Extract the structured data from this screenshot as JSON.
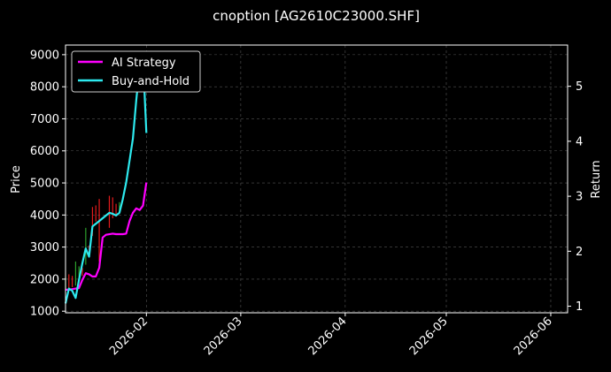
{
  "chart_data": {
    "type": "line",
    "title": "cnoption [AG2610C23000.SHF]",
    "ylabel": "Price",
    "y2label": "Return",
    "xlabel": "",
    "grid": true,
    "legend_placement": "top-left",
    "x_range": [
      "2026-01-08",
      "2026-06-06"
    ],
    "ylim": [
      950,
      9300
    ],
    "y2lim": [
      0.88,
      5.75
    ],
    "y_ticks": [
      1000,
      2000,
      3000,
      4000,
      5000,
      6000,
      7000,
      8000,
      9000
    ],
    "y2_ticks": [
      1,
      2,
      3,
      4,
      5
    ],
    "x_ticks": [
      "2026-02",
      "2026-03",
      "2026-04",
      "2026-05",
      "2026-06"
    ],
    "x_tick_dates": [
      "2026-02-01",
      "2026-03-01",
      "2026-04-01",
      "2026-05-01",
      "2026-06-01"
    ],
    "colors": {
      "ai": "#ff00ff",
      "bh": "#2de9ee",
      "up": "#2ca02c",
      "down": "#e31a1c",
      "grid": "#555555"
    },
    "series": [
      {
        "name": "AI Strategy",
        "axis": "right",
        "color": "#ff00ff",
        "points": [
          [
            "2026-01-08",
            1.3
          ],
          [
            "2026-01-09",
            1.3
          ],
          [
            "2026-01-10",
            1.31
          ],
          [
            "2026-01-12",
            1.33
          ],
          [
            "2026-01-13",
            1.48
          ],
          [
            "2026-01-14",
            1.6
          ],
          [
            "2026-01-15",
            1.58
          ],
          [
            "2026-01-16",
            1.54
          ],
          [
            "2026-01-17",
            1.54
          ],
          [
            "2026-01-18",
            1.7
          ],
          [
            "2026-01-19",
            2.25
          ],
          [
            "2026-01-20",
            2.3
          ],
          [
            "2026-01-22",
            2.32
          ],
          [
            "2026-01-23",
            2.31
          ],
          [
            "2026-01-25",
            2.31
          ],
          [
            "2026-01-26",
            2.32
          ],
          [
            "2026-01-27",
            2.55
          ],
          [
            "2026-01-28",
            2.7
          ],
          [
            "2026-01-29",
            2.78
          ],
          [
            "2026-01-30",
            2.75
          ],
          [
            "2026-01-31",
            2.83
          ],
          [
            "2026-02-01",
            3.25
          ]
        ]
      },
      {
        "name": "Buy-and-Hold",
        "axis": "right",
        "color": "#2de9ee",
        "points": [
          [
            "2026-01-08",
            1.05
          ],
          [
            "2026-01-09",
            1.32
          ],
          [
            "2026-01-10",
            1.28
          ],
          [
            "2026-01-11",
            1.15
          ],
          [
            "2026-01-12",
            1.48
          ],
          [
            "2026-01-13",
            1.78
          ],
          [
            "2026-01-14",
            2.05
          ],
          [
            "2026-01-15",
            1.9
          ],
          [
            "2026-01-16",
            2.45
          ],
          [
            "2026-01-18",
            2.55
          ],
          [
            "2026-01-20",
            2.65
          ],
          [
            "2026-01-21",
            2.7
          ],
          [
            "2026-01-22",
            2.68
          ],
          [
            "2026-01-23",
            2.65
          ],
          [
            "2026-01-24",
            2.7
          ],
          [
            "2026-01-25",
            2.95
          ],
          [
            "2026-01-26",
            3.25
          ],
          [
            "2026-01-28",
            4.05
          ],
          [
            "2026-01-29",
            4.75
          ],
          [
            "2026-01-30",
            5.35
          ],
          [
            "2026-01-31",
            5.5
          ],
          [
            "2026-02-01",
            4.15
          ]
        ]
      }
    ],
    "candles": [
      {
        "date": "2026-01-08",
        "dir": "up",
        "low": 1650,
        "high": 2050
      },
      {
        "date": "2026-01-09",
        "dir": "down",
        "low": 1700,
        "high": 2150
      },
      {
        "date": "2026-01-10",
        "dir": "down",
        "low": 1750,
        "high": 2100
      },
      {
        "date": "2026-01-11",
        "dir": "up",
        "low": 1800,
        "high": 2550
      },
      {
        "date": "2026-01-12",
        "dir": "up",
        "low": 2000,
        "high": 2400
      },
      {
        "date": "2026-01-13",
        "dir": "down",
        "low": 2100,
        "high": 2350
      },
      {
        "date": "2026-01-14",
        "dir": "up",
        "low": 2450,
        "high": 3600
      },
      {
        "date": "2026-01-15",
        "dir": "down",
        "low": 2750,
        "high": 3050
      },
      {
        "date": "2026-01-16",
        "dir": "down",
        "low": 3350,
        "high": 4250
      },
      {
        "date": "2026-01-17",
        "dir": "down",
        "low": 3800,
        "high": 4300
      },
      {
        "date": "2026-01-18",
        "dir": "down",
        "low": 2550,
        "high": 4500
      },
      {
        "date": "2026-01-21",
        "dir": "down",
        "low": 3600,
        "high": 4600
      },
      {
        "date": "2026-01-22",
        "dir": "down",
        "low": 3900,
        "high": 4550
      },
      {
        "date": "2026-01-23",
        "dir": "down",
        "low": 3950,
        "high": 4350
      },
      {
        "date": "2026-01-24",
        "dir": "up",
        "low": 4050,
        "high": 4400
      }
    ]
  }
}
